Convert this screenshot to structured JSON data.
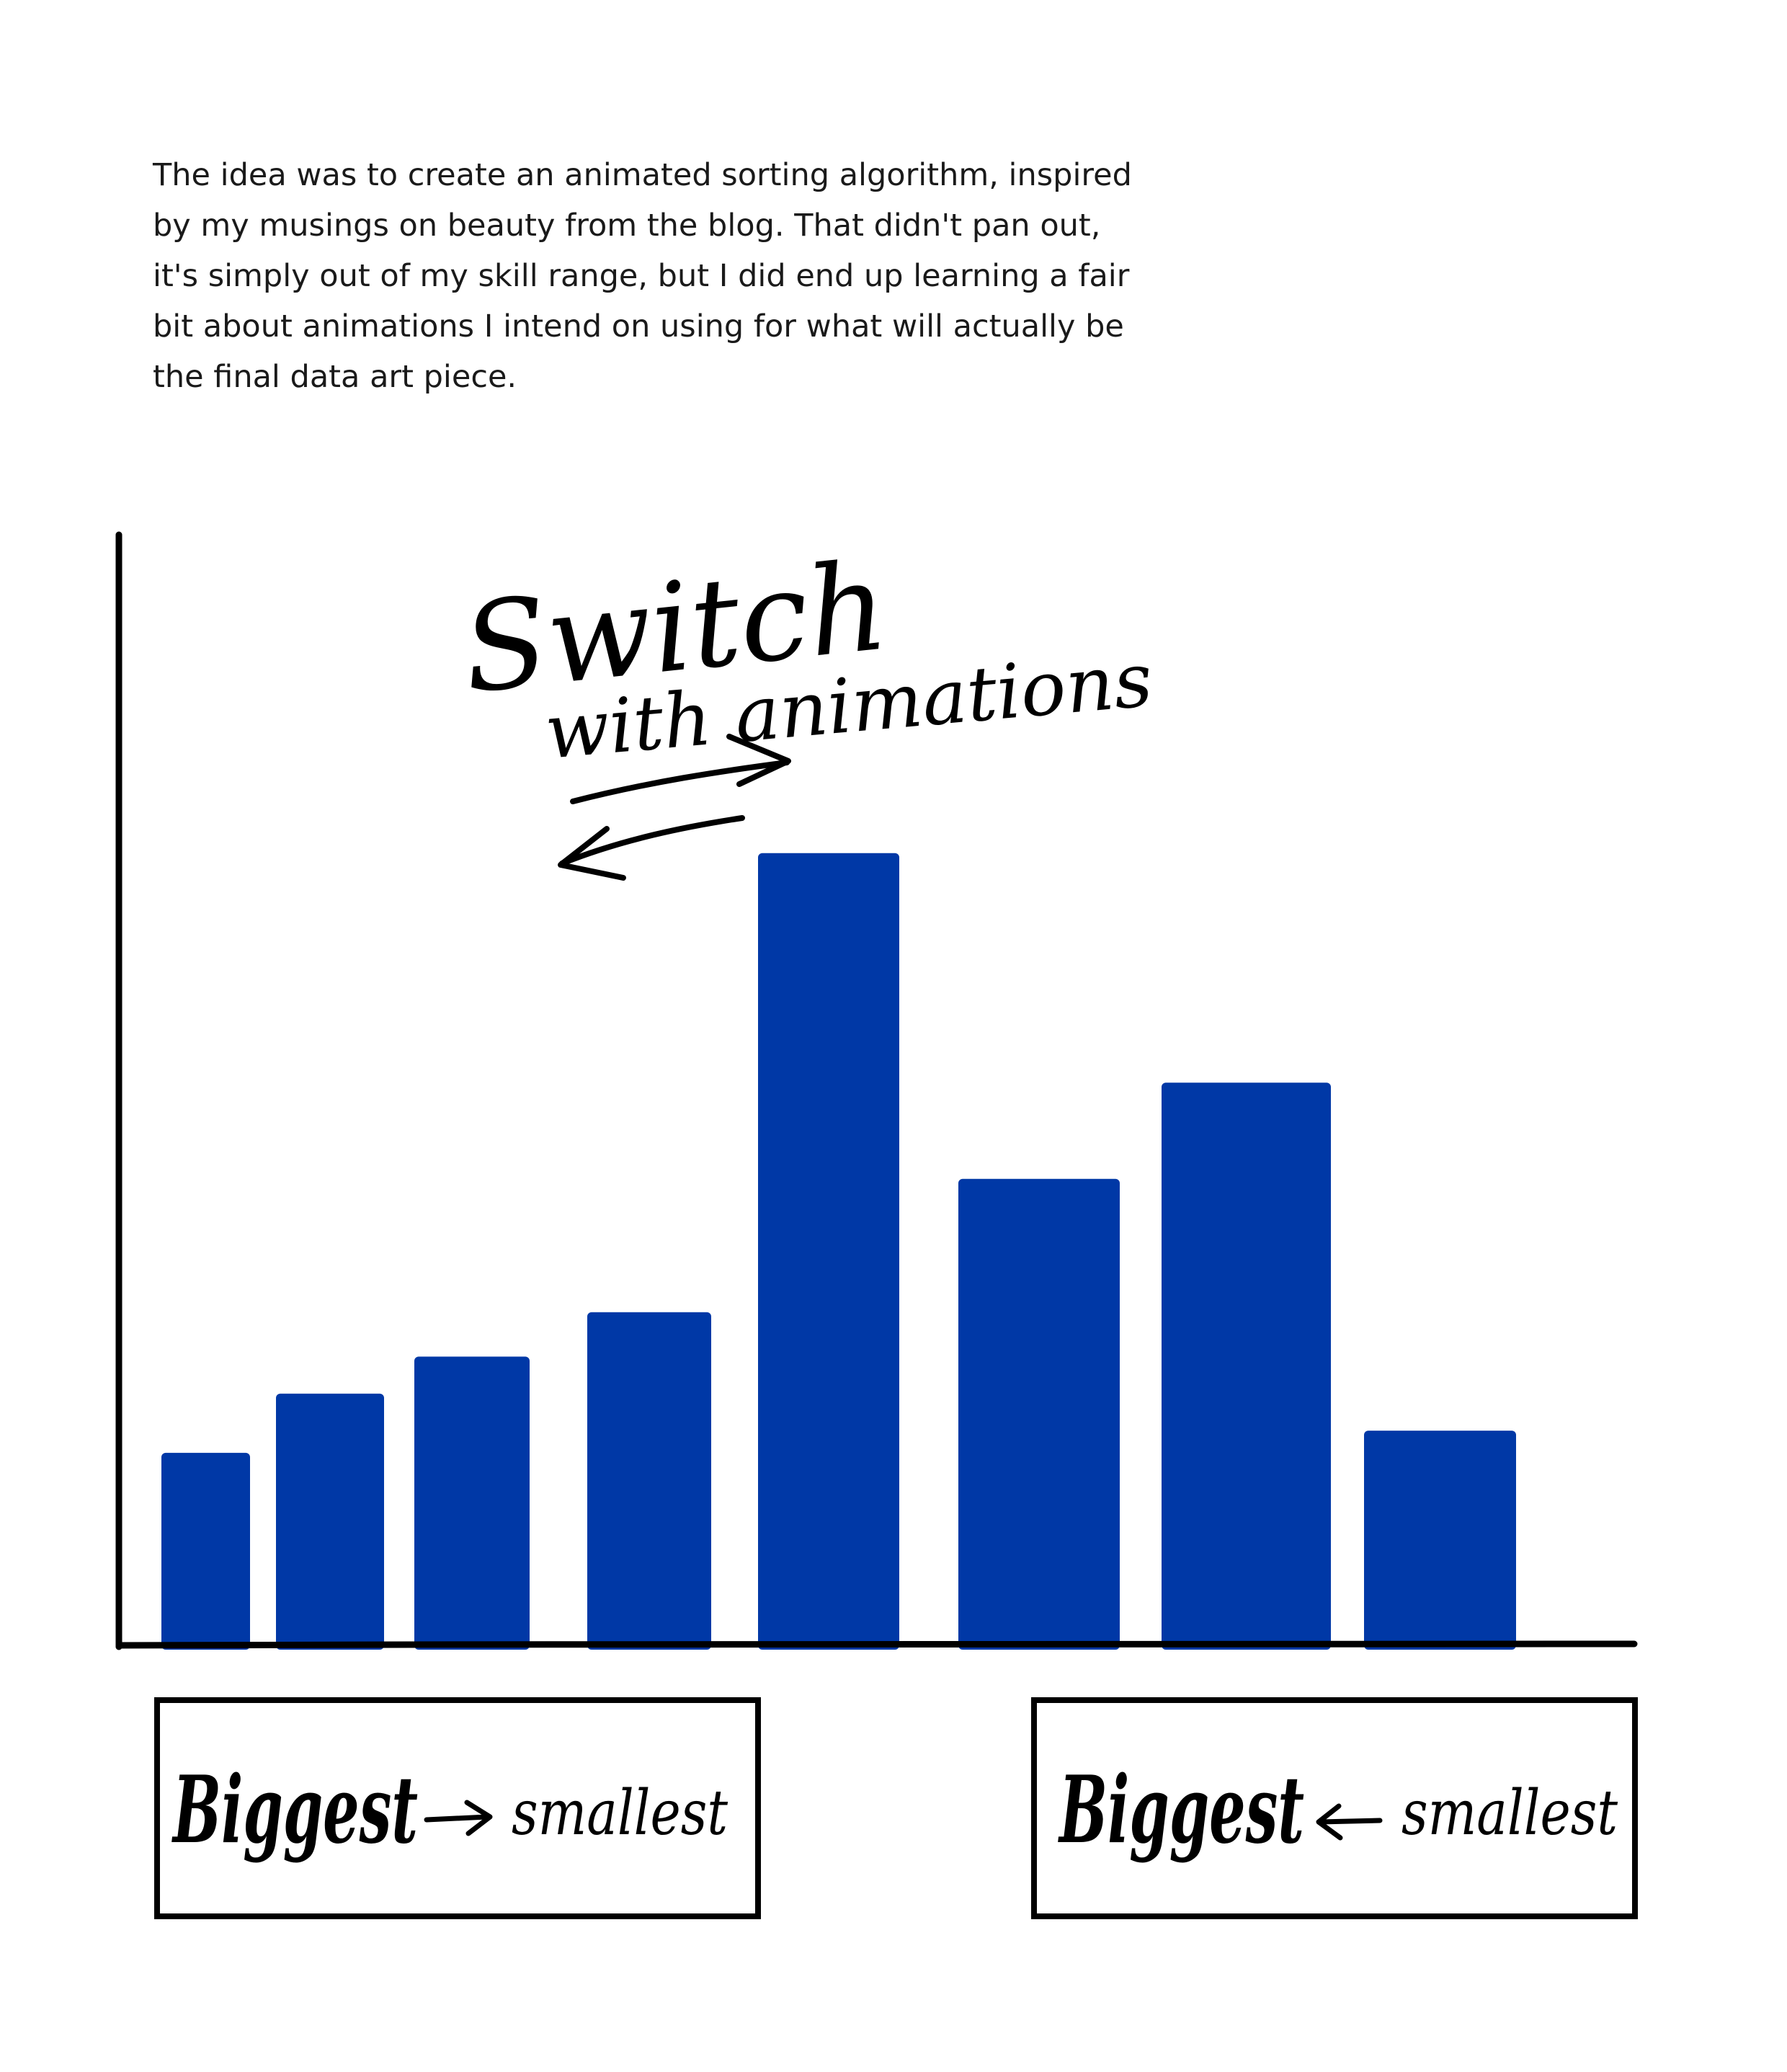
{
  "intro": {
    "lines": [
      "The idea was to create an animated sorting algorithm, inspired",
      "by my musings on beauty from the blog. That didn't pan out,",
      "it's simply out of my skill range, but I did end up learning a fair",
      "bit about animations I intend on using for what will actually be",
      "the final data art piece."
    ]
  },
  "annotation": {
    "line1": "Switch",
    "line2": "with animations"
  },
  "buttons": {
    "sort_descending": {
      "biggest": "Biggest",
      "smallest": "smallest"
    },
    "sort_ascending": {
      "biggest": "Biggest",
      "smallest": "smallest"
    }
  },
  "colors": {
    "bar": "#0038a6",
    "ink": "#000000"
  },
  "chart_data": {
    "type": "bar",
    "values": [
      26,
      34,
      39,
      45,
      107,
      63,
      76,
      29
    ],
    "ylim": [
      0,
      150
    ],
    "grid": false
  }
}
